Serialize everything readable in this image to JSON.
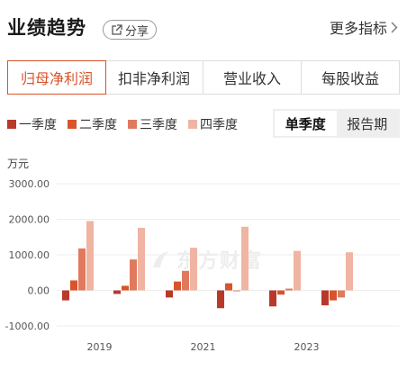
{
  "header": {
    "title": "业绩趋势",
    "share_label": "分享",
    "more_label": "更多指标"
  },
  "tabs": [
    {
      "label": "归母净利润",
      "active": true
    },
    {
      "label": "扣非净利润",
      "active": false
    },
    {
      "label": "营业收入",
      "active": false
    },
    {
      "label": "每股收益",
      "active": false
    }
  ],
  "period_toggle": {
    "single_quarter": "单季度",
    "report_period": "报告期",
    "selected": "单季度"
  },
  "watermark": "东方财富",
  "colors": {
    "accent": "#d9542b",
    "q1": "#b8392a",
    "q2": "#d9542b",
    "q3": "#e07a5f",
    "q4": "#f0b4a2"
  },
  "chart_data": {
    "type": "bar",
    "unit_label": "万元",
    "series": [
      {
        "name": "一季度",
        "values": [
          -280,
          -100,
          -200,
          -500,
          -450,
          -420
        ]
      },
      {
        "name": "二季度",
        "values": [
          280,
          130,
          250,
          200,
          -120,
          -280
        ]
      },
      {
        "name": "三季度",
        "values": [
          1180,
          870,
          550,
          -20,
          50,
          -200
        ]
      },
      {
        "name": "四季度",
        "values": [
          1950,
          1760,
          1200,
          1790,
          1110,
          1070
        ]
      }
    ],
    "x_tick_labels": [
      "2019",
      "2021",
      "2023"
    ],
    "y_tick_labels": [
      "3000.00",
      "2000.00",
      "1000.00",
      "0.00",
      "-1000.00"
    ],
    "ylim": [
      -1000,
      3000
    ],
    "grid": true,
    "legend_position": "top-left"
  }
}
